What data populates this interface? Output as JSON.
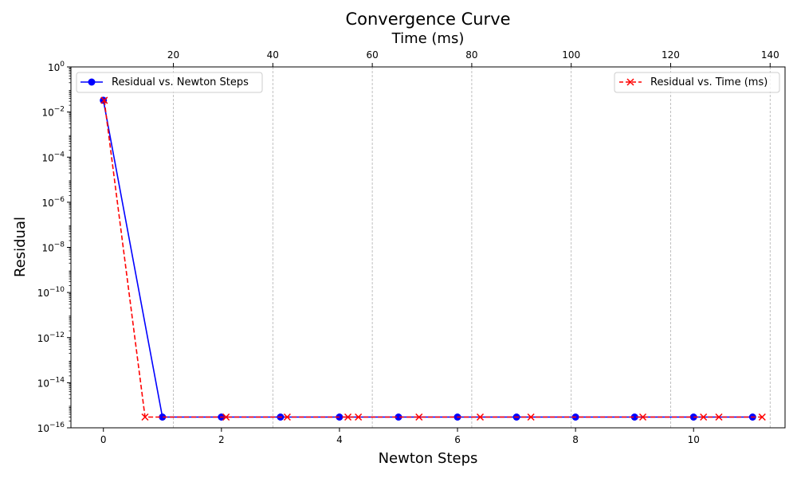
{
  "chart_data": {
    "type": "line",
    "title": "Convergence Curve",
    "xlabel": "Newton Steps",
    "x2label": "Time (ms)",
    "ylabel": "Residual",
    "yscale": "log",
    "ylim_exp": [
      -16,
      0
    ],
    "xlim": [
      -0.55,
      11.55
    ],
    "x2lim": [
      -0.6,
      143
    ],
    "grid": "vertical dashed at top-axis ticks",
    "xticks": [
      0,
      2,
      4,
      6,
      8,
      10
    ],
    "x2ticks": [
      20,
      40,
      60,
      80,
      100,
      120,
      140
    ],
    "yticks_exp": [
      -16,
      -14,
      -12,
      -10,
      -8,
      -6,
      -4,
      -2,
      0
    ],
    "series": [
      {
        "name": "Residual vs. Newton Steps",
        "axis": "bottom",
        "color": "#0000ff",
        "line": "solid",
        "marker": "circle",
        "legend_position": "upper left",
        "x": [
          0,
          1,
          2,
          3,
          4,
          5,
          6,
          7,
          8,
          9,
          10,
          11
        ],
        "y": [
          0.033,
          3e-16,
          3e-16,
          3e-16,
          3e-16,
          3e-16,
          3e-16,
          3e-16,
          3e-16,
          3e-16,
          3e-16,
          3e-16
        ]
      },
      {
        "name": "Residual vs. Time (ms)",
        "axis": "top",
        "color": "#ff0000",
        "line": "dashed",
        "marker": "x",
        "legend_position": "upper right",
        "x": [
          6.1,
          14.3,
          30.6,
          42.9,
          55.1,
          57.2,
          69.4,
          81.7,
          91.9,
          114.4,
          126.6,
          129.7,
          138.4
        ],
        "y": [
          0.033,
          3e-16,
          3e-16,
          3e-16,
          3e-16,
          3e-16,
          3e-16,
          3e-16,
          3e-16,
          3e-16,
          3e-16,
          3e-16,
          3e-16
        ]
      }
    ]
  }
}
